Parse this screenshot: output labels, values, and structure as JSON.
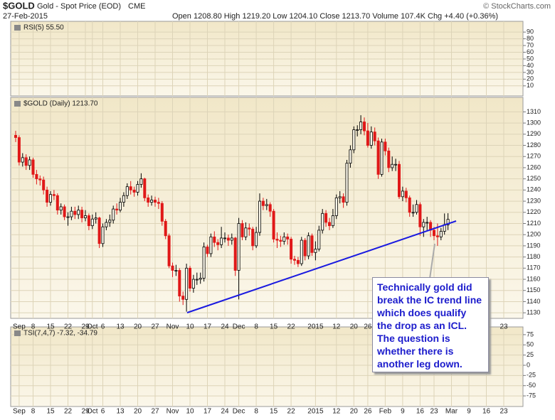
{
  "header": {
    "symbol": "$GOLD",
    "description": "Gold - Spot Price (EOD)",
    "exchange": "CME",
    "date": "27-Feb-2015",
    "quote": "Open 1208.80 High 1219.20 Low 1204.10 Close 1213.70 Volume 107.4K Chg +4.40 (+0.36%)",
    "credit": "© StockCharts.com"
  },
  "chart_data": [
    {
      "type": "indicator",
      "label": "RSI(5) 55.50",
      "ylim": [
        -5,
        106
      ],
      "yticks": [
        10,
        20,
        30,
        40,
        50,
        60,
        70,
        80,
        90
      ]
    },
    {
      "type": "candlestick",
      "label": "$GOLD (Daily) 1213.70",
      "up_color": "#000000",
      "down_color": "#e01818",
      "ylim": [
        1125,
        1323
      ],
      "yticks": [
        1130,
        1140,
        1150,
        1160,
        1170,
        1180,
        1190,
        1200,
        1210,
        1220,
        1230,
        1240,
        1250,
        1260,
        1270,
        1280,
        1290,
        1300,
        1310
      ],
      "grid": true,
      "categories": [
        null,
        "Sep",
        null,
        null,
        null,
        "8",
        null,
        null,
        null,
        null,
        "15",
        null,
        null,
        null,
        null,
        "22",
        null,
        null,
        null,
        null,
        "29",
        null,
        "Oct",
        null,
        null,
        "6",
        null,
        null,
        null,
        null,
        "13",
        null,
        null,
        null,
        null,
        "20",
        null,
        null,
        null,
        null,
        "27",
        null,
        null,
        null,
        null,
        "Nov",
        null,
        null,
        null,
        null,
        "10",
        null,
        null,
        null,
        null,
        "17",
        null,
        null,
        null,
        null,
        "24",
        null,
        null,
        null,
        "Dec",
        null,
        null,
        null,
        null,
        "8",
        null,
        null,
        null,
        null,
        "15",
        null,
        null,
        null,
        null,
        "22",
        null,
        null,
        null,
        null,
        null,
        null,
        "2015",
        null,
        null,
        null,
        null,
        null,
        "12",
        null,
        null,
        null,
        null,
        "20",
        null,
        null,
        null,
        "26",
        null,
        null,
        null,
        null,
        "Feb",
        null,
        null,
        null,
        null,
        "9",
        null,
        null,
        null,
        null,
        "16",
        null,
        null,
        null,
        "23",
        null,
        null,
        null,
        null,
        "Mar",
        null,
        null,
        null,
        null,
        "9",
        null,
        null,
        null,
        null,
        "16",
        null,
        null,
        null,
        null,
        "23"
      ],
      "open": [
        1289,
        1287,
        1265,
        1269,
        1262,
        1267,
        1254,
        1250,
        1249,
        1240,
        1229,
        1236,
        1235,
        1222,
        1225,
        1216,
        1216,
        1221,
        1218,
        1222,
        1215,
        1217,
        1208,
        1214,
        1215,
        1192,
        1207,
        1211,
        1213,
        1223,
        1222,
        1229,
        1235,
        1243,
        1240,
        1238,
        1245,
        1250,
        1233,
        1229,
        1231,
        1229,
        1228,
        1212,
        1199,
        1172,
        1168,
        1168,
        1145,
        1142,
        1170,
        1152,
        1160,
        1160,
        1161,
        1189,
        1183,
        1198,
        1193,
        1191,
        1197,
        1197,
        1195,
        1197,
        1168,
        1210,
        1198,
        1206,
        1205,
        1190,
        1202,
        1230,
        1226,
        1227,
        1221,
        1196,
        1195,
        1194,
        1198,
        1196,
        1178,
        1177,
        1174,
        1195,
        1181,
        1199,
        1184,
        1187,
        1204,
        1219,
        1211,
        1208,
        1217,
        1233,
        1234,
        1229,
        1264,
        1276,
        1294,
        1294,
        1301,
        1293,
        1280,
        1292,
        1284,
        1254,
        1283,
        1275,
        1260,
        1263,
        1263,
        1234,
        1239,
        1233,
        1220,
        1220,
        1227,
        1207,
        1211,
        1211,
        1204,
        1199,
        1198,
        1203,
        1208.8,
        null,
        null,
        null,
        null,
        null,
        null,
        null,
        null,
        null,
        null,
        null,
        null,
        null,
        null,
        null,
        null
      ],
      "high": [
        1293,
        1289,
        1273,
        1272,
        1270,
        1269,
        1258,
        1253,
        1252,
        1243,
        1239,
        1240,
        1237,
        1228,
        1227,
        1220,
        1225,
        1225,
        1226,
        1225,
        1222,
        1219,
        1218,
        1220,
        1216,
        1210,
        1214,
        1218,
        1226,
        1228,
        1233,
        1238,
        1246,
        1248,
        1243,
        1248,
        1255,
        1251,
        1236,
        1235,
        1234,
        1233,
        1230,
        1214,
        1201,
        1175,
        1173,
        1170,
        1149,
        1174,
        1172,
        1164,
        1166,
        1166,
        1193,
        1191,
        1201,
        1203,
        1196,
        1207,
        1202,
        1200,
        1201,
        1198,
        1215,
        1213,
        1211,
        1210,
        1207,
        1207,
        1237,
        1233,
        1232,
        1229,
        1223,
        1202,
        1199,
        1202,
        1201,
        1198,
        1181,
        1180,
        1198,
        1197,
        1202,
        1201,
        1194,
        1208,
        1223,
        1222,
        1215,
        1223,
        1236,
        1239,
        1237,
        1267,
        1280,
        1297,
        1298,
        1307,
        1305,
        1300,
        1297,
        1296,
        1287,
        1286,
        1286,
        1278,
        1270,
        1268,
        1266,
        1243,
        1242,
        1235,
        1227,
        1231,
        1229,
        1214,
        1216,
        1213,
        1207,
        1210,
        1206,
        1219,
        1219.2,
        null,
        null,
        null,
        null,
        null,
        null,
        null,
        null,
        null,
        null,
        null,
        null,
        null,
        null,
        null,
        null
      ],
      "low": [
        1283,
        1262,
        1261,
        1258,
        1258,
        1251,
        1245,
        1244,
        1236,
        1225,
        1226,
        1231,
        1218,
        1218,
        1213,
        1208,
        1213,
        1214,
        1214,
        1211,
        1212,
        1204,
        1205,
        1210,
        1188,
        1189,
        1204,
        1207,
        1210,
        1218,
        1220,
        1225,
        1232,
        1236,
        1234,
        1235,
        1242,
        1230,
        1225,
        1226,
        1225,
        1223,
        1208,
        1196,
        1170,
        1162,
        1163,
        1140,
        1137,
        1131,
        1149,
        1148,
        1155,
        1156,
        1158,
        1180,
        1180,
        1189,
        1186,
        1188,
        1193,
        1190,
        1191,
        1163,
        1142,
        1195,
        1195,
        1199,
        1186,
        1188,
        1199,
        1222,
        1222,
        1216,
        1193,
        1188,
        1189,
        1191,
        1191,
        1174,
        1173,
        1171,
        1172,
        1177,
        1178,
        1181,
        1177,
        1185,
        1201,
        1207,
        1204,
        1206,
        1214,
        1228,
        1224,
        1226,
        1260,
        1273,
        1288,
        1290,
        1289,
        1278,
        1277,
        1280,
        1250,
        1252,
        1271,
        1256,
        1257,
        1257,
        1232,
        1230,
        1229,
        1216,
        1216,
        1218,
        1199,
        1198,
        1204,
        1198,
        1195,
        1190,
        1195,
        1200,
        1204.1,
        null,
        null,
        null,
        null,
        null,
        null,
        null,
        null,
        null,
        null,
        null,
        null,
        null,
        null,
        null,
        null
      ],
      "close": [
        1287,
        1265,
        1269,
        1262,
        1267,
        1254,
        1250,
        1249,
        1240,
        1229,
        1236,
        1235,
        1222,
        1225,
        1216,
        1216,
        1221,
        1218,
        1222,
        1215,
        1217,
        1208,
        1214,
        1215,
        1192,
        1207,
        1211,
        1213,
        1223,
        1222,
        1229,
        1235,
        1243,
        1240,
        1238,
        1245,
        1250,
        1233,
        1229,
        1231,
        1229,
        1228,
        1212,
        1199,
        1172,
        1168,
        1168,
        1145,
        1142,
        1170,
        1152,
        1160,
        1160,
        1161,
        1189,
        1183,
        1198,
        1193,
        1191,
        1197,
        1197,
        1195,
        1197,
        1168,
        1210,
        1198,
        1206,
        1205,
        1190,
        1202,
        1230,
        1226,
        1227,
        1221,
        1196,
        1195,
        1194,
        1198,
        1196,
        1178,
        1177,
        1174,
        1195,
        1181,
        1199,
        1184,
        1187,
        1204,
        1219,
        1211,
        1208,
        1217,
        1233,
        1234,
        1229,
        1264,
        1276,
        1294,
        1294,
        1301,
        1293,
        1280,
        1292,
        1284,
        1254,
        1283,
        1275,
        1260,
        1263,
        1263,
        1234,
        1239,
        1233,
        1220,
        1220,
        1227,
        1207,
        1211,
        1211,
        1204,
        1199,
        1198,
        1203,
        1209,
        1213.7,
        null,
        null,
        null,
        null,
        null,
        null,
        null,
        null,
        null,
        null,
        null,
        null,
        null,
        null,
        null,
        null
      ]
    },
    {
      "type": "indicator",
      "label": "TSI(7,4,7) -7.32, -34.79",
      "ylim": [
        -101,
        94
      ],
      "yticks": [
        75,
        50,
        25,
        0,
        -25,
        -50,
        -75
      ]
    }
  ],
  "annotation": {
    "text": "Technically gold did break the IC trend line which does qualify the drop as an ICL. The question is whether there is another leg down."
  }
}
